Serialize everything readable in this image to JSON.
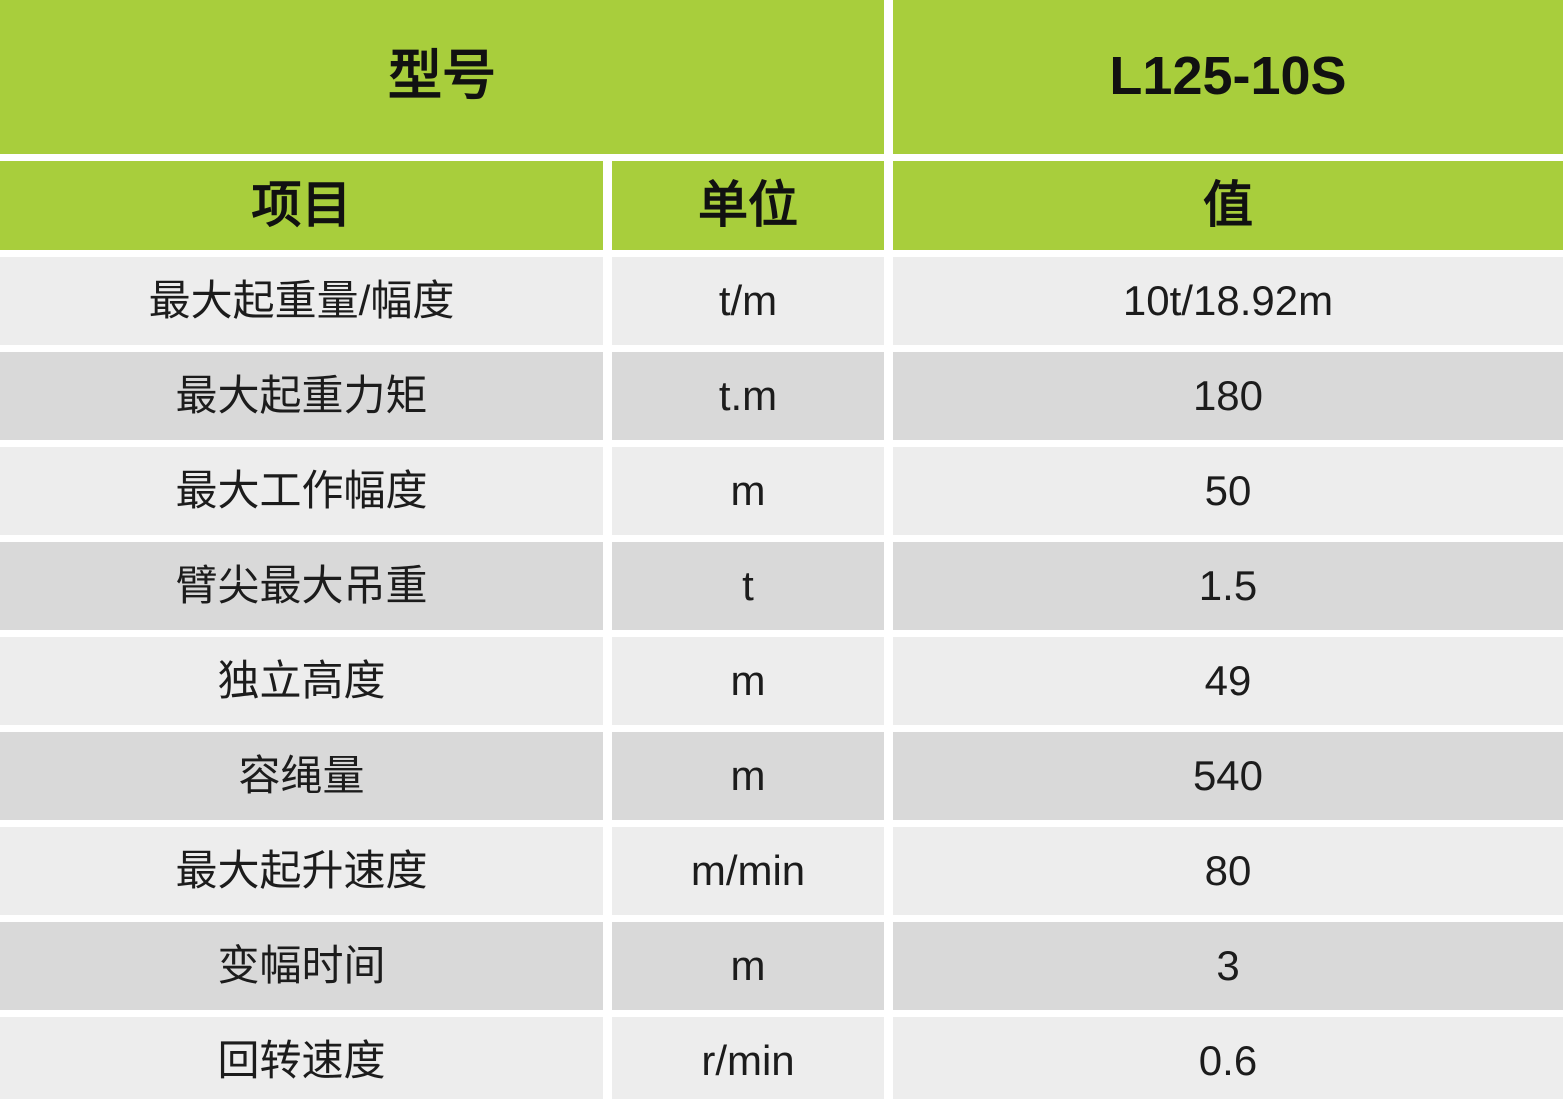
{
  "chart_data": {
    "type": "table",
    "model_header": {
      "label": "型号",
      "value": "L125-10S"
    },
    "columns": {
      "item": "项目",
      "unit": "单位",
      "value": "值"
    },
    "rows": [
      {
        "item": "最大起重量/幅度",
        "unit": "t/m",
        "value": "10t/18.92m"
      },
      {
        "item": "最大起重力矩",
        "unit": "t.m",
        "value": "180"
      },
      {
        "item": "最大工作幅度",
        "unit": "m",
        "value": "50"
      },
      {
        "item": "臂尖最大吊重",
        "unit": "t",
        "value": "1.5"
      },
      {
        "item": "独立高度",
        "unit": "m",
        "value": "49"
      },
      {
        "item": "容绳量",
        "unit": "m",
        "value": "540"
      },
      {
        "item": "最大起升速度",
        "unit": "m/min",
        "value": "80"
      },
      {
        "item": "变幅时间",
        "unit": "m",
        "value": "3"
      },
      {
        "item": "回转速度",
        "unit": "r/min",
        "value": "0.6"
      }
    ]
  },
  "colors": {
    "header_green": "#a8ce3c",
    "row_light": "#ededed",
    "row_dark": "#d9d9d9",
    "background": "#ffffff",
    "header_text": "#111111",
    "cell_text": "#1c1c1c"
  }
}
